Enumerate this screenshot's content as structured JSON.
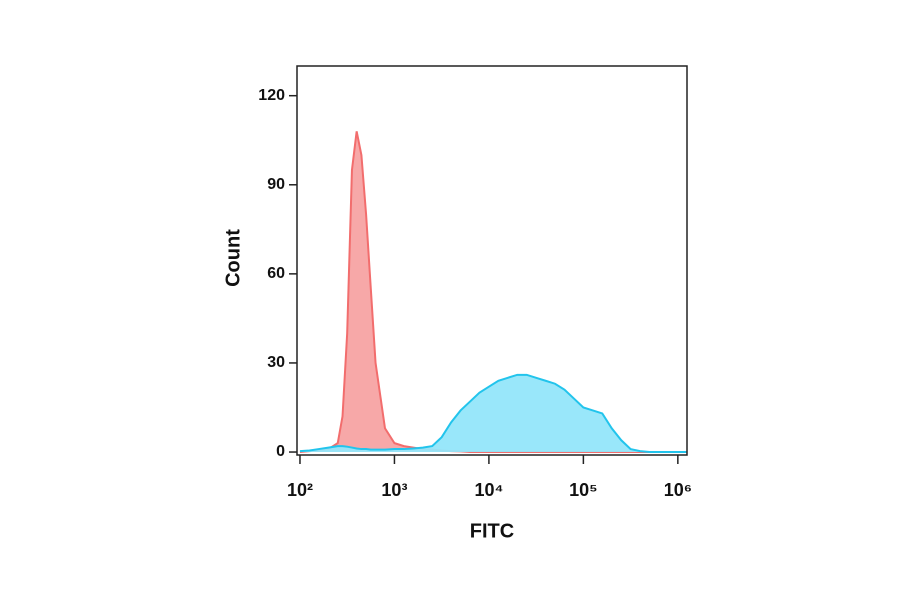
{
  "chart_data": {
    "type": "area",
    "xlabel": "FITC",
    "ylabel": "Count",
    "xscale": "log",
    "x": [
      100,
      126,
      158,
      200,
      251,
      282,
      316,
      355,
      398,
      447,
      501,
      562,
      631,
      794,
      1000,
      1259,
      1585,
      1995,
      2512,
      3162,
      3981,
      5012,
      6310,
      7943,
      10000,
      12589,
      15849,
      19953,
      25119,
      31623,
      39811,
      50119,
      63096,
      79433,
      100000,
      125893,
      158489,
      199526,
      251189,
      316228,
      398107,
      501187,
      630957,
      794328,
      1000000,
      1230000
    ],
    "series": [
      {
        "color": "#f26d6d",
        "fill": "#f7a3a3",
        "values": [
          0,
          0.3,
          0.5,
          1,
          3,
          12,
          40,
          95,
          108,
          100,
          80,
          55,
          30,
          8,
          3,
          2,
          1.5,
          1,
          0.8,
          0.5,
          0.3,
          0.2,
          0,
          0,
          0,
          0,
          0,
          0,
          0,
          0,
          0,
          0,
          0,
          0,
          0,
          0,
          0,
          0,
          0,
          0,
          0,
          0,
          0,
          0,
          0,
          0
        ]
      },
      {
        "color": "#22c4ec",
        "fill": "#93e6fa",
        "values": [
          0.3,
          0.5,
          1,
          1.5,
          2,
          2,
          1.8,
          1.5,
          1.2,
          1,
          1,
          0.8,
          0.8,
          0.8,
          1,
          1,
          1.2,
          1.5,
          2,
          5,
          10,
          14,
          17,
          20,
          22,
          24,
          25,
          26,
          26,
          25,
          24,
          23,
          21,
          18,
          15,
          14,
          13,
          8,
          4,
          1,
          0.3,
          0,
          0,
          0,
          0,
          0
        ]
      }
    ],
    "xlim": [
      93,
      1250000
    ],
    "ylim": [
      -1,
      130
    ],
    "xticks": [
      {
        "value": 100,
        "label": "10²"
      },
      {
        "value": 1000,
        "label": "10³"
      },
      {
        "value": 10000,
        "label": "10⁴"
      },
      {
        "value": 100000,
        "label": "10⁵"
      },
      {
        "value": 1000000,
        "label": "10⁶"
      }
    ],
    "yticks": [
      0,
      30,
      60,
      90,
      120
    ]
  }
}
